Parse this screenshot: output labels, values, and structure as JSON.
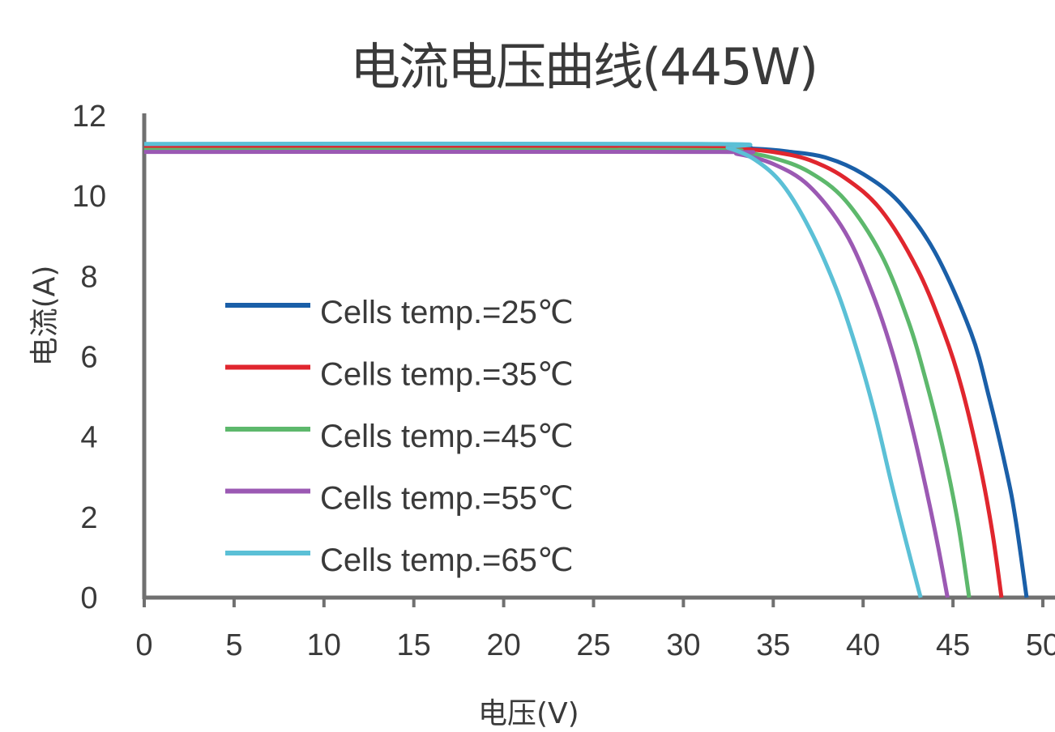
{
  "chart_data": {
    "type": "line",
    "title": "电流电压曲线(445W)",
    "xlabel": "电压(V)",
    "ylabel": "电流(A)",
    "xlim": [
      0,
      50
    ],
    "ylim": [
      0,
      12
    ],
    "x_ticks": [
      "0",
      "5",
      "10",
      "15",
      "20",
      "25",
      "30",
      "35",
      "40",
      "45",
      "50"
    ],
    "y_ticks": [
      "0",
      "2",
      "4",
      "6",
      "8",
      "10",
      "12"
    ],
    "grid": false,
    "legend_position": "left",
    "series": [
      {
        "name": "Cells temp.=25℃",
        "color": "#1a5fa8",
        "x": [
          0,
          30,
          34,
          36,
          38,
          40,
          42,
          44,
          46,
          47,
          48,
          48.5,
          49.1
        ],
        "y": [
          11.2,
          11.2,
          11.18,
          11.1,
          10.95,
          10.55,
          9.85,
          8.6,
          6.6,
          5.0,
          3.1,
          1.9,
          0
        ]
      },
      {
        "name": "Cells temp.=35℃",
        "color": "#e0262e",
        "x": [
          0,
          30,
          33,
          35,
          37,
          39,
          41,
          43,
          44.5,
          45.5,
          46.5,
          47.2,
          47.7
        ],
        "y": [
          11.2,
          11.2,
          11.18,
          11.1,
          10.9,
          10.45,
          9.65,
          8.2,
          6.6,
          5.2,
          3.3,
          1.6,
          0
        ]
      },
      {
        "name": "Cells temp.=45℃",
        "color": "#5db86c",
        "x": [
          0,
          30,
          33,
          35,
          37,
          39,
          41,
          42.5,
          43.5,
          44.5,
          45.3,
          45.9
        ],
        "y": [
          11.15,
          11.15,
          11.1,
          10.95,
          10.6,
          9.9,
          8.55,
          6.9,
          5.4,
          3.6,
          1.8,
          0
        ]
      },
      {
        "name": "Cells temp.=55℃",
        "color": "#9b59b3",
        "x": [
          0,
          31,
          33,
          35,
          37,
          39,
          40.5,
          41.7,
          42.8,
          43.7,
          44.2,
          44.7
        ],
        "y": [
          11.1,
          11.1,
          11.05,
          10.8,
          10.25,
          9.1,
          7.6,
          6.0,
          4.1,
          2.3,
          1.2,
          0
        ]
      },
      {
        "name": "Cells temp.=65℃",
        "color": "#5bc0d6",
        "x": [
          0,
          31,
          32.5,
          34,
          35.5,
          37,
          38.5,
          39.7,
          40.7,
          41.6,
          42.5,
          43.2
        ],
        "y": [
          11.3,
          11.3,
          11.2,
          10.9,
          10.3,
          9.2,
          7.7,
          6.1,
          4.5,
          2.8,
          1.2,
          0
        ]
      }
    ]
  }
}
